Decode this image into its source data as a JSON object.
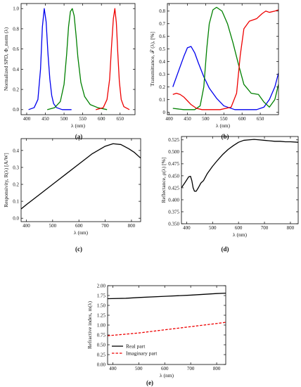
{
  "chart_data": [
    {
      "id": "a",
      "panel_label": "(a)",
      "type": "line",
      "xlabel": "λ (nm)",
      "ylabel": "Normalized SPD, Φ_norm (λ)",
      "xlim": [
        385,
        690
      ],
      "ylim": [
        -0.05,
        1.05
      ],
      "xticks": [
        400,
        450,
        500,
        550,
        600,
        650
      ],
      "yticks": [
        0.0,
        0.2,
        0.4,
        0.6,
        0.8,
        1.0
      ],
      "ytick_labels": [
        "0.0",
        "0.2",
        "0.4",
        "0.6",
        "0.8",
        "1.0"
      ],
      "series": [
        {
          "color": "#0000ee",
          "x": [
            405,
            420,
            430,
            437,
            442,
            447,
            452,
            457,
            462,
            467,
            472,
            480,
            495,
            520
          ],
          "y": [
            0.0,
            0.02,
            0.1,
            0.4,
            0.82,
            1.0,
            0.87,
            0.55,
            0.3,
            0.14,
            0.06,
            0.02,
            0.0,
            0.0
          ]
        },
        {
          "color": "#008000",
          "x": [
            455,
            475,
            490,
            500,
            507,
            512,
            517,
            522,
            527,
            532,
            537,
            545,
            555,
            570,
            590,
            615
          ],
          "y": [
            0.0,
            0.02,
            0.08,
            0.25,
            0.55,
            0.82,
            0.97,
            1.0,
            0.93,
            0.74,
            0.52,
            0.27,
            0.13,
            0.05,
            0.02,
            0.0
          ]
        },
        {
          "color": "#ee0000",
          "x": [
            585,
            605,
            615,
            622,
            627,
            632,
            636,
            640,
            644,
            648,
            653,
            660,
            675
          ],
          "y": [
            0.0,
            0.02,
            0.1,
            0.3,
            0.62,
            0.9,
            1.0,
            0.86,
            0.55,
            0.28,
            0.1,
            0.03,
            0.0
          ]
        }
      ]
    },
    {
      "id": "b",
      "panel_label": "(b)",
      "type": "line",
      "xlabel": "λ (nm)",
      "ylabel": "Transmittance, 𝒯 (λ), [%]",
      "xlim": [
        395,
        700
      ],
      "ylim": [
        -0.02,
        0.86
      ],
      "xticks": [
        400,
        450,
        500,
        550,
        600,
        650
      ],
      "yticks": [
        0.0,
        0.1,
        0.2,
        0.3,
        0.4,
        0.5,
        0.6,
        0.7,
        0.8
      ],
      "ytick_labels": [
        "0",
        "0.1",
        "0.2",
        "0.3",
        "0.4",
        "0.5",
        "0.6",
        "0.7",
        "0.8"
      ],
      "series": [
        {
          "color": "#0000ee",
          "x": [
            410,
            425,
            440,
            450,
            460,
            470,
            480,
            495,
            510,
            530,
            550,
            580,
            610,
            640,
            660,
            675,
            690,
            700
          ],
          "y": [
            0.2,
            0.32,
            0.44,
            0.51,
            0.52,
            0.47,
            0.39,
            0.28,
            0.19,
            0.11,
            0.05,
            0.02,
            0.02,
            0.02,
            0.04,
            0.1,
            0.2,
            0.31
          ]
        },
        {
          "color": "#008000",
          "x": [
            410,
            440,
            470,
            485,
            495,
            503,
            510,
            520,
            530,
            545,
            560,
            575,
            590,
            605,
            625,
            645,
            660,
            675,
            690,
            700
          ],
          "y": [
            0.03,
            0.02,
            0.02,
            0.05,
            0.2,
            0.5,
            0.7,
            0.81,
            0.83,
            0.8,
            0.7,
            0.55,
            0.38,
            0.22,
            0.15,
            0.14,
            0.08,
            0.04,
            0.1,
            0.22
          ]
        },
        {
          "color": "#ee0000",
          "x": [
            410,
            420,
            430,
            440,
            450,
            460,
            475,
            490,
            510,
            540,
            570,
            585,
            595,
            605,
            620,
            640,
            655,
            665,
            675,
            690,
            700
          ],
          "y": [
            0.14,
            0.15,
            0.14,
            0.12,
            0.09,
            0.06,
            0.03,
            0.02,
            0.02,
            0.02,
            0.04,
            0.15,
            0.45,
            0.66,
            0.72,
            0.74,
            0.78,
            0.8,
            0.79,
            0.8,
            0.81
          ]
        }
      ]
    },
    {
      "id": "c",
      "panel_label": "(c)",
      "type": "line",
      "xlabel": "λ (nm)",
      "ylabel": "Responsivity, R(λ) [A/W]",
      "xlim": [
        380,
        835
      ],
      "ylim": [
        -0.02,
        0.47
      ],
      "xticks": [
        400,
        500,
        600,
        700,
        800
      ],
      "yticks": [
        0.0,
        0.1,
        0.2,
        0.3,
        0.4
      ],
      "ytick_labels": [
        "0.0",
        "0.1",
        "0.2",
        "0.3",
        "0.4"
      ],
      "series": [
        {
          "color": "#000000",
          "x": [
            380,
            400,
            450,
            500,
            550,
            600,
            650,
            700,
            730,
            760,
            790,
            810,
            835
          ],
          "y": [
            0.055,
            0.08,
            0.14,
            0.2,
            0.26,
            0.32,
            0.38,
            0.425,
            0.44,
            0.435,
            0.41,
            0.39,
            0.355
          ]
        }
      ]
    },
    {
      "id": "d",
      "panel_label": "(d)",
      "type": "line",
      "xlabel": "λ (nm)",
      "ylabel": "Reflectance, ρ(λ) [%]",
      "xlim": [
        380,
        830
      ],
      "ylim": [
        0.35,
        0.532
      ],
      "xticks": [
        400,
        500,
        600,
        700,
        800
      ],
      "yticks": [
        0.35,
        0.375,
        0.4,
        0.425,
        0.45,
        0.475,
        0.5,
        0.525
      ],
      "ytick_labels": [
        "0.350",
        "0.375",
        "0.400",
        "0.425",
        "0.450",
        "0.475",
        "0.500",
        "0.525"
      ],
      "series": [
        {
          "color": "#000000",
          "x": [
            380,
            395,
            408,
            415,
            420,
            425,
            430,
            437,
            445,
            455,
            465,
            480,
            500,
            520,
            540,
            560,
            580,
            600,
            620,
            640,
            660,
            680,
            700,
            720,
            740,
            760,
            780,
            800,
            830
          ],
          "y": [
            0.425,
            0.437,
            0.448,
            0.449,
            0.44,
            0.425,
            0.418,
            0.418,
            0.425,
            0.435,
            0.44,
            0.455,
            0.47,
            0.483,
            0.495,
            0.505,
            0.513,
            0.52,
            0.524,
            0.525,
            0.526,
            0.525,
            0.524,
            0.523,
            0.522,
            0.522,
            0.521,
            0.521,
            0.52
          ]
        }
      ]
    },
    {
      "id": "e",
      "panel_label": "(e)",
      "type": "line",
      "xlabel": "λ (nm)",
      "ylabel": "Refractive index, m(λ)",
      "xlim": [
        380,
        835
      ],
      "ylim": [
        0.0,
        2.0
      ],
      "xticks": [
        400,
        500,
        600,
        700,
        800
      ],
      "yticks": [
        0.0,
        0.25,
        0.5,
        0.75,
        1.0,
        1.25,
        1.5,
        1.75,
        2.0
      ],
      "ytick_labels": [
        "0.00",
        "0.25",
        "0.50",
        "0.75",
        "1.00",
        "1.25",
        "1.50",
        "1.75",
        "2.00"
      ],
      "legend": "lower-left",
      "series": [
        {
          "name": "Real part",
          "color": "#000000",
          "dashed": false,
          "x": [
            380,
            450,
            500,
            600,
            700,
            800,
            835
          ],
          "y": [
            1.67,
            1.68,
            1.7,
            1.73,
            1.76,
            1.8,
            1.81
          ]
        },
        {
          "name": "Imaginary part",
          "color": "#ee0000",
          "dashed": true,
          "x": [
            380,
            450,
            500,
            600,
            700,
            800,
            835
          ],
          "y": [
            0.73,
            0.77,
            0.8,
            0.88,
            0.96,
            1.04,
            1.07
          ]
        }
      ]
    }
  ]
}
